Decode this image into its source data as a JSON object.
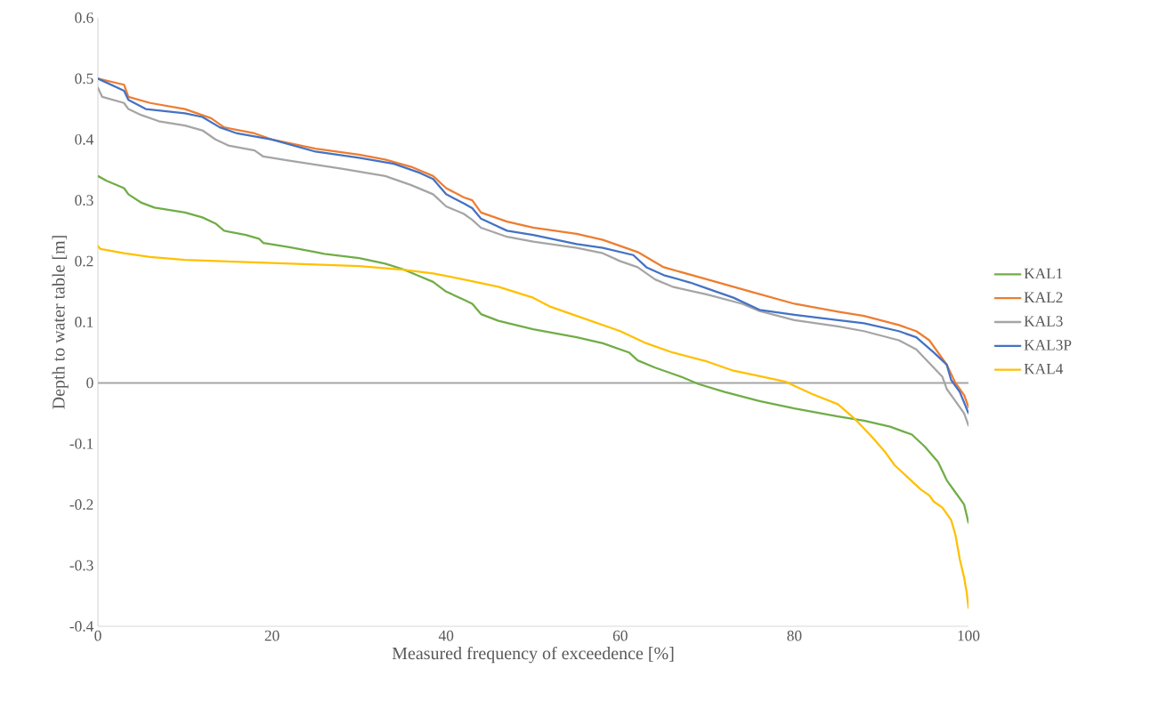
{
  "chart_data": {
    "type": "line",
    "xlabel": "Measured frequency of exceedence [%]",
    "ylabel": "Depth to water table [m]",
    "xlim": [
      0,
      100
    ],
    "xticks": [
      0,
      20,
      40,
      60,
      80,
      100
    ],
    "ylim": [
      -0.4,
      0.6
    ],
    "yticks": [
      -0.4,
      -0.3,
      -0.2,
      -0.1,
      0,
      0.1,
      0.2,
      0.3,
      0.4,
      0.5,
      0.6
    ],
    "grid": false,
    "legend": "right",
    "marker": "none",
    "line_style": "solid",
    "ref_lines": [
      {
        "axis": "y",
        "value": 0,
        "color": "#a6a6a6"
      }
    ],
    "series": [
      {
        "name": "KAL1",
        "color": "#70ad47",
        "x": [
          0,
          1,
          3,
          3.5,
          5,
          6.5,
          10,
          12,
          13.5,
          14.5,
          17,
          18.5,
          19,
          22,
          25,
          26,
          30,
          33,
          35,
          37,
          38.5,
          40,
          42,
          43,
          44,
          46,
          50,
          55,
          58,
          61,
          62,
          64,
          67,
          69,
          72,
          76,
          80,
          85,
          88,
          91,
          93.5,
          95,
          96.5,
          97,
          97.5,
          98.5,
          99.5,
          100
        ],
        "values": [
          0.34,
          0.332,
          0.32,
          0.31,
          0.296,
          0.288,
          0.28,
          0.272,
          0.262,
          0.25,
          0.243,
          0.237,
          0.23,
          0.223,
          0.215,
          0.212,
          0.205,
          0.196,
          0.187,
          0.175,
          0.166,
          0.15,
          0.137,
          0.13,
          0.113,
          0.102,
          0.088,
          0.075,
          0.065,
          0.05,
          0.037,
          0.025,
          0.01,
          -0.002,
          -0.015,
          -0.03,
          -0.042,
          -0.055,
          -0.062,
          -0.072,
          -0.085,
          -0.105,
          -0.13,
          -0.145,
          -0.16,
          -0.18,
          -0.2,
          -0.23
        ]
      },
      {
        "name": "KAL2",
        "color": "#ed7d31",
        "x": [
          0,
          3,
          3.5,
          6,
          10,
          13,
          14.5,
          18,
          20,
          25,
          30,
          33,
          36,
          38.5,
          40,
          42,
          43,
          44,
          47,
          50,
          55,
          58,
          62,
          65,
          70,
          75,
          80,
          85,
          88,
          92,
          94,
          95.5,
          96.5,
          97.5,
          98.5,
          99.5,
          100
        ],
        "values": [
          0.5,
          0.49,
          0.47,
          0.46,
          0.45,
          0.435,
          0.42,
          0.41,
          0.4,
          0.385,
          0.375,
          0.367,
          0.355,
          0.34,
          0.32,
          0.305,
          0.3,
          0.28,
          0.265,
          0.255,
          0.245,
          0.235,
          0.215,
          0.19,
          0.17,
          0.15,
          0.13,
          0.117,
          0.11,
          0.095,
          0.085,
          0.07,
          0.05,
          0.03,
          0.0,
          -0.02,
          -0.04
        ]
      },
      {
        "name": "KAL3",
        "color": "#a5a5a5",
        "x": [
          0,
          0.5,
          3,
          3.5,
          5,
          7,
          10,
          12,
          13.5,
          15,
          18,
          19,
          22,
          28,
          33,
          36,
          38.5,
          40,
          42,
          43,
          44,
          47,
          50,
          55,
          58,
          60,
          62,
          64,
          66,
          70,
          74,
          76,
          80,
          85,
          88,
          92,
          94,
          95,
          96,
          97,
          97.5,
          98.5,
          99.5,
          100
        ],
        "values": [
          0.485,
          0.47,
          0.46,
          0.45,
          0.44,
          0.43,
          0.423,
          0.415,
          0.4,
          0.39,
          0.382,
          0.372,
          0.365,
          0.352,
          0.34,
          0.325,
          0.31,
          0.29,
          0.278,
          0.268,
          0.255,
          0.24,
          0.232,
          0.222,
          0.213,
          0.2,
          0.19,
          0.17,
          0.158,
          0.145,
          0.13,
          0.118,
          0.103,
          0.093,
          0.085,
          0.07,
          0.055,
          0.04,
          0.025,
          0.01,
          -0.01,
          -0.03,
          -0.05,
          -0.07
        ]
      },
      {
        "name": "KAL3P",
        "color": "#4472c4",
        "x": [
          0,
          3,
          3.5,
          5.5,
          10,
          12,
          14,
          16,
          20,
          25,
          30,
          34,
          37,
          38.5,
          40,
          42,
          43,
          44,
          47,
          50,
          55,
          58,
          61.5,
          63,
          65,
          68,
          70,
          73,
          76,
          80,
          85,
          88,
          92,
          94,
          96,
          97.5,
          98,
          99,
          100
        ],
        "values": [
          0.5,
          0.48,
          0.465,
          0.45,
          0.443,
          0.437,
          0.42,
          0.41,
          0.4,
          0.38,
          0.37,
          0.36,
          0.345,
          0.335,
          0.31,
          0.295,
          0.287,
          0.27,
          0.25,
          0.243,
          0.228,
          0.222,
          0.21,
          0.19,
          0.177,
          0.165,
          0.155,
          0.14,
          0.12,
          0.112,
          0.103,
          0.098,
          0.085,
          0.075,
          0.05,
          0.03,
          0.005,
          -0.015,
          -0.05
        ]
      },
      {
        "name": "KAL4",
        "color": "#ffc000",
        "x": [
          0,
          0.3,
          3,
          6,
          10,
          20,
          30,
          35,
          38.5,
          42,
          46,
          50,
          52,
          55,
          60,
          63,
          66,
          70,
          73,
          77,
          79,
          80,
          82,
          85,
          87,
          89,
          90.5,
          91.5,
          93,
          94.5,
          95.5,
          96,
          97,
          98,
          98.5,
          99,
          99.5,
          99.8,
          100
        ],
        "values": [
          0.225,
          0.22,
          0.213,
          0.207,
          0.202,
          0.197,
          0.192,
          0.186,
          0.18,
          0.17,
          0.158,
          0.14,
          0.125,
          0.11,
          0.085,
          0.065,
          0.05,
          0.035,
          0.02,
          0.008,
          0.002,
          -0.005,
          -0.018,
          -0.035,
          -0.06,
          -0.09,
          -0.115,
          -0.135,
          -0.155,
          -0.175,
          -0.185,
          -0.195,
          -0.205,
          -0.225,
          -0.25,
          -0.29,
          -0.32,
          -0.345,
          -0.37
        ]
      }
    ]
  }
}
